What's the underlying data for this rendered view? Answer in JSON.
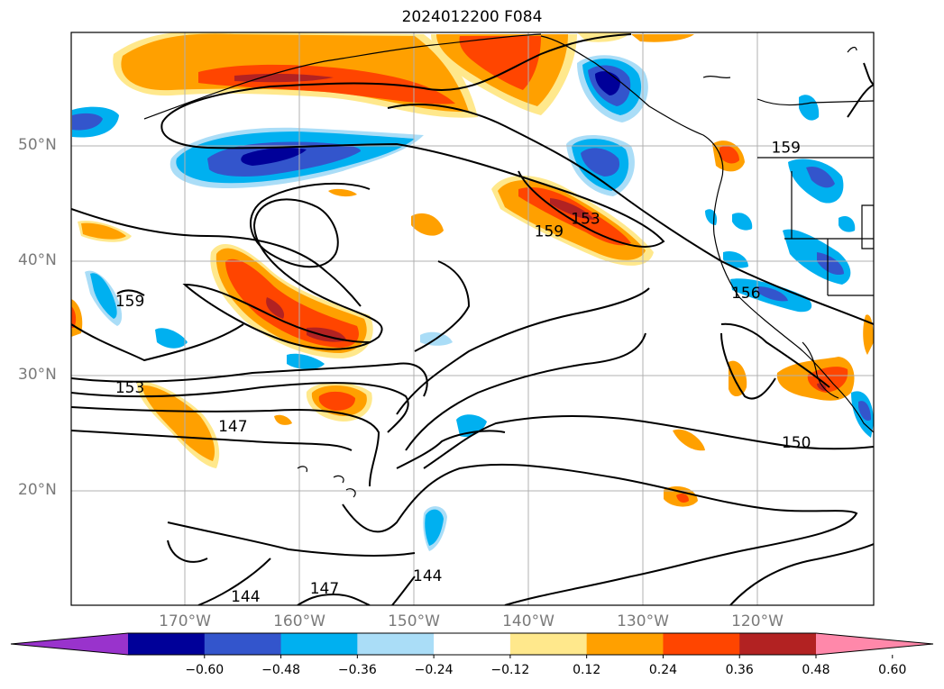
{
  "title": "2024012200 F084",
  "lat_labels": [
    {
      "text": "50°N",
      "lat": 50
    },
    {
      "text": "40°N",
      "lat": 40
    },
    {
      "text": "30°N",
      "lat": 30
    },
    {
      "text": "20°N",
      "lat": 20
    }
  ],
  "lon_labels": [
    {
      "text": "170°W",
      "lon": -170
    },
    {
      "text": "160°W",
      "lon": -160
    },
    {
      "text": "150°W",
      "lon": -150
    },
    {
      "text": "140°W",
      "lon": -140
    },
    {
      "text": "130°W",
      "lon": -130
    },
    {
      "text": "120°W",
      "lon": -120
    }
  ],
  "contour_labels": [
    {
      "text": "159",
      "lon": -117.5,
      "lat": 49.9
    },
    {
      "text": "153",
      "lon": -135.0,
      "lat": 43.7
    },
    {
      "text": "159",
      "lon": -138.2,
      "lat": 42.6
    },
    {
      "text": "156",
      "lon": -121.0,
      "lat": 37.2
    },
    {
      "text": "159",
      "lon": -174.8,
      "lat": 36.5
    },
    {
      "text": "153",
      "lon": -174.8,
      "lat": 29.0
    },
    {
      "text": "147",
      "lon": -165.8,
      "lat": 25.6
    },
    {
      "text": "150",
      "lon": -116.6,
      "lat": 24.2
    },
    {
      "text": "144",
      "lon": -148.8,
      "lat": 12.6
    },
    {
      "text": "147",
      "lon": -157.8,
      "lat": 11.5
    },
    {
      "text": "144",
      "lon": -164.7,
      "lat": 10.8
    }
  ],
  "colorbar": {
    "colors": [
      "#9933cc",
      "#000099",
      "#3355cc",
      "#00b0f0",
      "#aaddf7",
      "#ffffff",
      "#ffe88c",
      "#ffa000",
      "#ff4500",
      "#b22222",
      "#ff88aa"
    ],
    "tick_labels": [
      "−0.60",
      "−0.48",
      "−0.36",
      "−0.24",
      "−0.12",
      "0.12",
      "0.24",
      "0.36",
      "0.48",
      "0.60"
    ]
  }
}
